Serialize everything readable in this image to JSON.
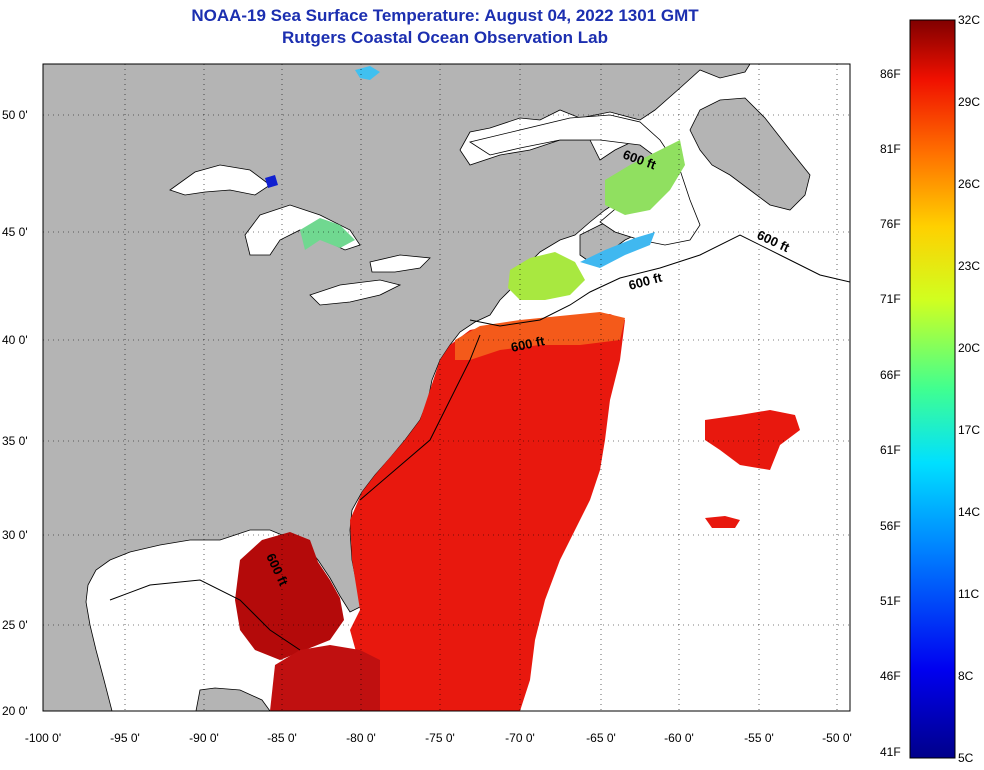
{
  "title": {
    "line1": "NOAA-19 Sea Surface Temperature:  August 04, 2022 1301 GMT",
    "line2": "Rutgers Coastal Ocean Observation Lab"
  },
  "map": {
    "lat_ticks": [
      "50 0'",
      "45 0'",
      "40 0'",
      "35 0'",
      "30 0'",
      "25 0'",
      "20 0'"
    ],
    "lon_ticks": [
      "-100 0'",
      "-95 0'",
      "-90 0'",
      "-85 0'",
      "-80 0'",
      "-75 0'",
      "-70 0'",
      "-65 0'",
      "-60 0'",
      "-55 0'",
      "-50 0'"
    ],
    "contour_label": "600 ft",
    "colors": {
      "land": "#b4b4b4",
      "no_data": "#ffffff",
      "warm": "#e8180e",
      "hot": "#b40a0a"
    }
  },
  "colorbar": {
    "celsius": [
      "32C",
      "29C",
      "26C",
      "23C",
      "20C",
      "17C",
      "14C",
      "11C",
      "8C",
      "5C"
    ],
    "fahrenheit": [
      "86F",
      "81F",
      "76F",
      "71F",
      "66F",
      "61F",
      "56F",
      "51F",
      "46F",
      "41F"
    ]
  }
}
